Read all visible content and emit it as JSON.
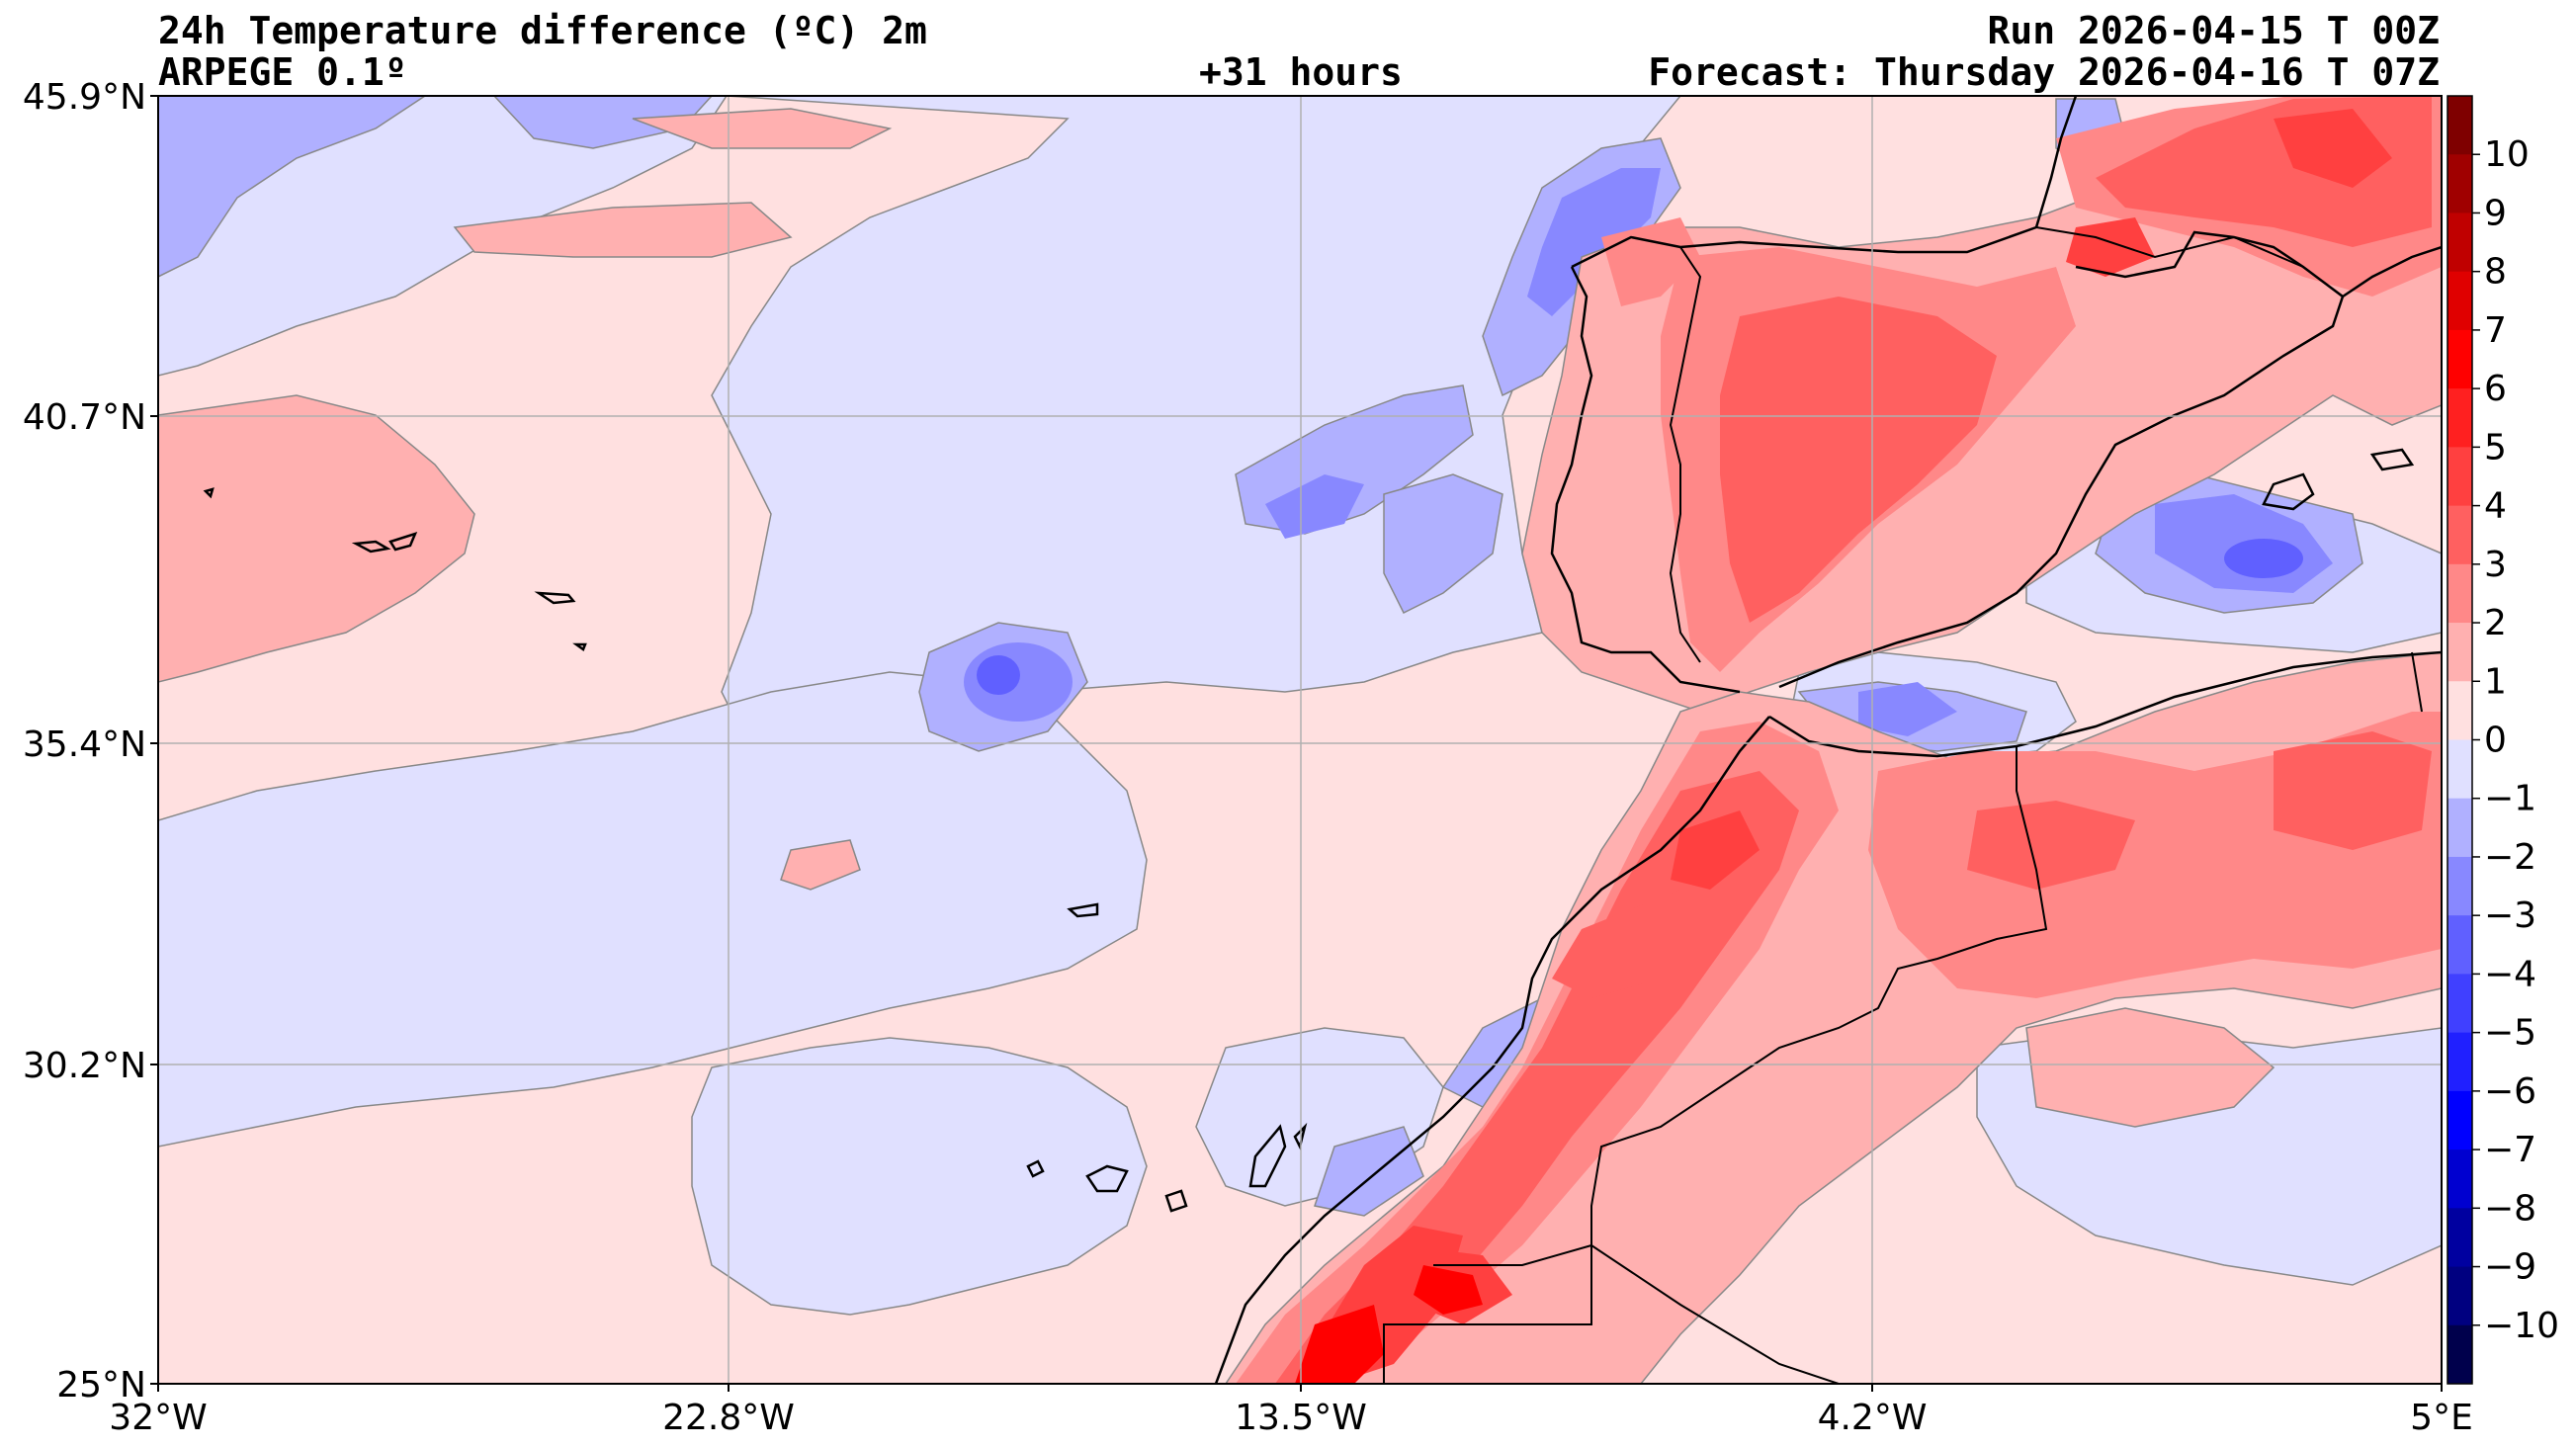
{
  "header": {
    "title": "24h Temperature difference (ºC) 2m",
    "model": "ARPEGE 0.1º",
    "lead": "+31 hours",
    "run": "Run 2026-04-15 T 00Z",
    "forecast": "Forecast: Thursday 2026-04-16 T 07Z"
  },
  "axes": {
    "lat_labels": [
      "45.9°N",
      "40.7°N",
      "35.4°N",
      "30.2°N",
      "25°N"
    ],
    "lon_labels": [
      "32°W",
      "22.8°W",
      "13.5°W",
      "4.2°W",
      "5°E"
    ]
  },
  "colorbar": {
    "ticks": [
      "10",
      "9",
      "8",
      "7",
      "6",
      "5",
      "4",
      "3",
      "2",
      "1",
      "0",
      "−1",
      "−2",
      "−3",
      "−4",
      "−5",
      "−6",
      "−7",
      "−8",
      "−9",
      "−10"
    ],
    "colors": [
      "#7f0000",
      "#a00000",
      "#c00000",
      "#e00000",
      "#ff0000",
      "#ff2020",
      "#ff4040",
      "#ff6060",
      "#ff8888",
      "#ffb0b0",
      "#ffe0e0",
      "#e0e0ff",
      "#b0b0ff",
      "#8888ff",
      "#6060ff",
      "#4040ff",
      "#2020ff",
      "#0000ff",
      "#0000d0",
      "#0000a0",
      "#000080",
      "#00004c"
    ]
  },
  "legend_colors": {
    "sea_neutral_warm": "#ffe0e0",
    "sea_neutral_cool": "#e0e0ff",
    "coastline": "#000000"
  }
}
